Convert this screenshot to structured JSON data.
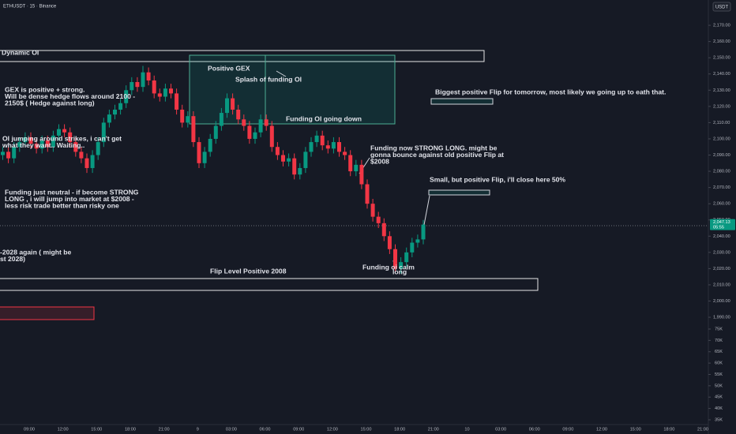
{
  "chart_data": {
    "type": "candlestick",
    "title": "ETHUSDT · 15 · Binance",
    "currency": "USDT",
    "up_color": "#089981",
    "down_color": "#f23645",
    "open": [
      2090,
      2092,
      2088,
      2095,
      2098,
      2101,
      2097,
      2094,
      2099,
      2095,
      2102,
      2106,
      2104,
      2098,
      2092,
      2088,
      2082,
      2090,
      2098,
      2110,
      2115,
      2118,
      2122,
      2130,
      2135,
      2132,
      2141,
      2136,
      2128,
      2126,
      2131,
      2128,
      2118,
      2110,
      2114,
      2098,
      2085,
      2092,
      2100,
      2108,
      2116,
      2125,
      2118,
      2112,
      2108,
      2100,
      2104,
      2112,
      2108,
      2095,
      2090,
      2086,
      2088,
      2078,
      2082,
      2092,
      2098,
      2102,
      2096,
      2094,
      2098,
      2092,
      2090,
      2080,
      2084,
      2072,
      2060,
      2052,
      2048,
      2040,
      2032,
      2020,
      2024,
      2030,
      2036,
      2038
    ],
    "high": [
      2095,
      2095,
      2098,
      2101,
      2104,
      2104,
      2100,
      2102,
      2102,
      2105,
      2109,
      2109,
      2107,
      2101,
      2095,
      2091,
      2093,
      2101,
      2113,
      2118,
      2121,
      2125,
      2133,
      2138,
      2138,
      2145,
      2144,
      2139,
      2131,
      2134,
      2134,
      2131,
      2121,
      2117,
      2117,
      2101,
      2095,
      2103,
      2111,
      2119,
      2128,
      2128,
      2121,
      2115,
      2111,
      2107,
      2115,
      2115,
      2111,
      2098,
      2093,
      2091,
      2091,
      2085,
      2095,
      2101,
      2105,
      2105,
      2099,
      2101,
      2101,
      2095,
      2093,
      2087,
      2087,
      2075,
      2063,
      2055,
      2051,
      2043,
      2035,
      2027,
      2033,
      2039,
      2041,
      2050
    ],
    "low": [
      2087,
      2085,
      2085,
      2092,
      2095,
      2094,
      2091,
      2091,
      2092,
      2092,
      2099,
      2101,
      2095,
      2089,
      2085,
      2079,
      2079,
      2087,
      2095,
      2107,
      2112,
      2115,
      2119,
      2127,
      2129,
      2129,
      2133,
      2125,
      2123,
      2123,
      2125,
      2115,
      2107,
      2107,
      2095,
      2082,
      2082,
      2089,
      2097,
      2105,
      2113,
      2115,
      2109,
      2105,
      2097,
      2097,
      2101,
      2105,
      2092,
      2087,
      2083,
      2083,
      2075,
      2075,
      2079,
      2089,
      2095,
      2093,
      2091,
      2091,
      2089,
      2087,
      2077,
      2077,
      2069,
      2057,
      2049,
      2045,
      2037,
      2029,
      2017,
      2017,
      2021,
      2027,
      2033,
      2035
    ],
    "close": [
      2092,
      2088,
      2095,
      2098,
      2101,
      2097,
      2094,
      2099,
      2095,
      2102,
      2106,
      2104,
      2098,
      2092,
      2088,
      2082,
      2090,
      2098,
      2110,
      2115,
      2118,
      2122,
      2130,
      2135,
      2132,
      2141,
      2136,
      2128,
      2126,
      2131,
      2128,
      2118,
      2110,
      2114,
      2098,
      2085,
      2092,
      2100,
      2108,
      2116,
      2125,
      2118,
      2112,
      2108,
      2100,
      2104,
      2112,
      2108,
      2095,
      2090,
      2086,
      2088,
      2078,
      2082,
      2092,
      2098,
      2102,
      2096,
      2094,
      2098,
      2092,
      2090,
      2080,
      2084,
      2072,
      2060,
      2052,
      2048,
      2040,
      2032,
      2020,
      2024,
      2030,
      2036,
      2038,
      2047.13
    ],
    "ylim": [
      1922.9,
      2185.6
    ],
    "yticks": [
      {
        "value": 2170,
        "label": "2,170.00"
      },
      {
        "value": 2160,
        "label": "2,160.00"
      },
      {
        "value": 2150,
        "label": "2,150.00"
      },
      {
        "value": 2140,
        "label": "2,140.00"
      },
      {
        "value": 2130,
        "label": "2,130.00"
      },
      {
        "value": 2120,
        "label": "2,120.00"
      },
      {
        "value": 2110,
        "label": "2,110.00"
      },
      {
        "value": 2100,
        "label": "2,100.00"
      },
      {
        "value": 2090,
        "label": "2,090.00"
      },
      {
        "value": 2080,
        "label": "2,080.00"
      },
      {
        "value": 2070,
        "label": "2,070.00"
      },
      {
        "value": 2060,
        "label": "2,060.00"
      },
      {
        "value": 2050,
        "label": "2,050.00"
      },
      {
        "value": 2040,
        "label": "2,040.00"
      },
      {
        "value": 2030,
        "label": "2,030.00"
      },
      {
        "value": 2020,
        "label": "2,020.00"
      },
      {
        "value": 2010,
        "label": "2,010.00"
      },
      {
        "value": 2000,
        "label": "2,000.00"
      },
      {
        "value": 1990,
        "label": "1,990.00"
      }
    ],
    "y2lim": [
      32217,
      220043
    ],
    "y2ticks": [
      {
        "value": 75000,
        "label": "75K"
      },
      {
        "value": 70000,
        "label": "70K"
      },
      {
        "value": 65000,
        "label": "65K"
      },
      {
        "value": 60000,
        "label": "60K"
      },
      {
        "value": 55000,
        "label": "55K"
      },
      {
        "value": 50000,
        "label": "50K"
      },
      {
        "value": 45000,
        "label": "45K"
      },
      {
        "value": 40000,
        "label": "40K"
      },
      {
        "value": 35000,
        "label": "35K"
      }
    ],
    "x_labels": [
      "09:00",
      "12:00",
      "15:00",
      "18:00",
      "21:00",
      "9",
      "03:00",
      "06:00",
      "09:00",
      "12:00",
      "15:00",
      "18:00",
      "21:00",
      "10",
      "03:00",
      "06:00",
      "09:00",
      "12:00",
      "15:00",
      "18:00",
      "21:00"
    ],
    "last_price": {
      "value": 2047.13,
      "label": "2,047.13"
    },
    "countdown": "05:55",
    "annotations": [
      {
        "lines": [
          "Dynamic OI"
        ]
      },
      {
        "lines": [
          "Positive GEX"
        ]
      },
      {
        "lines": [
          "Splash of funding OI"
        ]
      },
      {
        "lines": [
          "Funding OI going down"
        ]
      },
      {
        "lines": [
          "GEX is positive +  strong.",
          "Will be dense hedge flows around 2100 -",
          "2150$ ( Hedge against long)"
        ]
      },
      {
        "lines": [
          "OI jumping around strikes, i can't get",
          "what they want.. Waiting.."
        ]
      },
      {
        "lines": [
          "Funding just neutral - if become STRONG",
          "LONG , i will jump into market at $2008 -",
          "less risk trade better than risky one"
        ]
      },
      {
        "lines": [
          "-2028 again ( might be",
          "st 2028)"
        ]
      },
      {
        "lines": [
          "Flip Level Positive 2008"
        ]
      },
      {
        "lines": [
          "Biggest positive Flip for tomorrow, most likely we going up to eath that."
        ]
      },
      {
        "lines": [
          "Funding now STRONG LONG. might be",
          "gonna bounce against old positive Flip at",
          "$2008"
        ]
      },
      {
        "lines": [
          "Small, but positive Flip, i'll close here 50%"
        ]
      },
      {
        "lines": [
          "Funding oi calm"
        ]
      },
      {
        "lines": [
          "long"
        ]
      }
    ]
  }
}
